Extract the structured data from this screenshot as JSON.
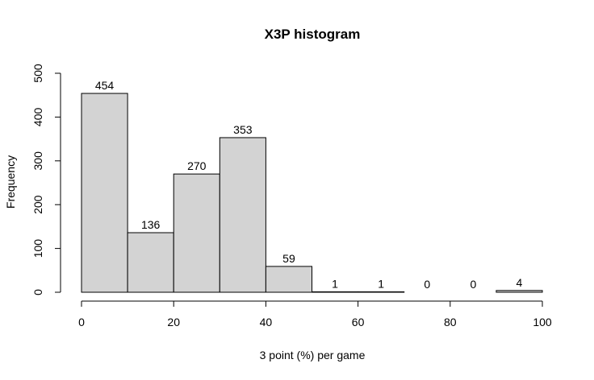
{
  "chart_data": {
    "type": "bar",
    "title": "X3P histogram",
    "xlabel": "3 point (%) per game",
    "ylabel": "Frequency",
    "bins": [
      [
        0,
        10
      ],
      [
        10,
        20
      ],
      [
        20,
        30
      ],
      [
        30,
        40
      ],
      [
        40,
        50
      ],
      [
        50,
        60
      ],
      [
        60,
        70
      ],
      [
        70,
        80
      ],
      [
        80,
        90
      ],
      [
        90,
        100
      ]
    ],
    "values": [
      454,
      136,
      270,
      353,
      59,
      1,
      1,
      0,
      0,
      4
    ],
    "xlim": [
      0,
      100
    ],
    "ylim": [
      0,
      500
    ],
    "xticks": [
      0,
      20,
      40,
      60,
      80,
      100
    ],
    "yticks": [
      0,
      100,
      200,
      300,
      400,
      500
    ],
    "bar_color": "#d3d3d3",
    "edge_color": "#000000",
    "grid": false
  }
}
